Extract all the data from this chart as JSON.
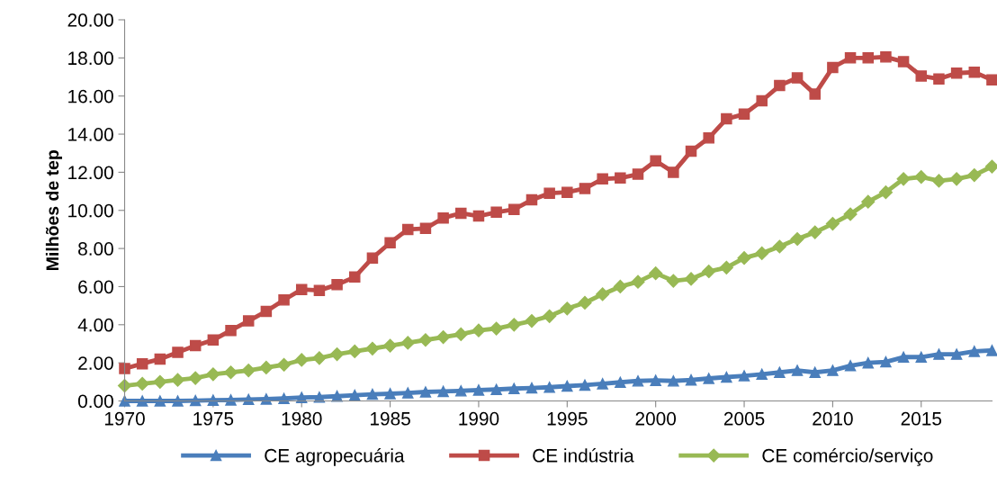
{
  "chart_data": {
    "type": "line",
    "ylabel": "Milhões de tep",
    "x": [
      1970,
      1971,
      1972,
      1973,
      1974,
      1975,
      1976,
      1977,
      1978,
      1979,
      1980,
      1981,
      1982,
      1983,
      1984,
      1985,
      1986,
      1987,
      1988,
      1989,
      1990,
      1991,
      1992,
      1993,
      1994,
      1995,
      1996,
      1997,
      1998,
      1999,
      2000,
      2001,
      2002,
      2003,
      2004,
      2005,
      2006,
      2007,
      2008,
      2009,
      2010,
      2011,
      2012,
      2013,
      2014,
      2015,
      2016,
      2017,
      2018,
      2019
    ],
    "xlim": [
      1970,
      2019
    ],
    "xticks": [
      1970,
      1975,
      1980,
      1985,
      1990,
      1995,
      2000,
      2005,
      2010,
      2015
    ],
    "ylim": [
      0,
      20
    ],
    "yticks": [
      {
        "value": 0,
        "label": "0.00"
      },
      {
        "value": 2,
        "label": "2.00"
      },
      {
        "value": 4,
        "label": "4.00"
      },
      {
        "value": 6,
        "label": "6.00"
      },
      {
        "value": 8,
        "label": "8.00"
      },
      {
        "value": 10,
        "label": "10.00"
      },
      {
        "value": 12,
        "label": "12.00"
      },
      {
        "value": 14,
        "label": "14.00"
      },
      {
        "value": 16,
        "label": "16.00"
      },
      {
        "value": 18,
        "label": "18.00"
      },
      {
        "value": 20,
        "label": "20.00"
      }
    ],
    "grid": false,
    "legend": "bottom",
    "line_style": "solid",
    "series": [
      {
        "name": "CE agropecuária",
        "color": "#4a7ebb",
        "marker": "triangle",
        "values": [
          0,
          0,
          0,
          0,
          0.02,
          0.04,
          0.05,
          0.08,
          0.1,
          0.13,
          0.18,
          0.2,
          0.25,
          0.3,
          0.35,
          0.38,
          0.42,
          0.47,
          0.5,
          0.53,
          0.57,
          0.6,
          0.65,
          0.68,
          0.72,
          0.78,
          0.83,
          0.9,
          0.98,
          1.05,
          1.08,
          1.05,
          1.1,
          1.18,
          1.25,
          1.32,
          1.4,
          1.5,
          1.6,
          1.5,
          1.6,
          1.85,
          2.0,
          2.05,
          2.3,
          2.3,
          2.45,
          2.45,
          2.6,
          2.65
        ]
      },
      {
        "name": "CE indústria",
        "color": "#be4b48",
        "marker": "square",
        "values": [
          1.7,
          1.95,
          2.2,
          2.55,
          2.9,
          3.2,
          3.7,
          4.2,
          4.7,
          5.3,
          5.85,
          5.8,
          6.1,
          6.5,
          7.5,
          8.3,
          9.0,
          9.05,
          9.6,
          9.85,
          9.7,
          9.9,
          10.05,
          10.55,
          10.9,
          10.95,
          11.15,
          11.65,
          11.7,
          11.9,
          12.6,
          12.0,
          13.1,
          13.8,
          14.8,
          15.05,
          15.75,
          16.55,
          16.95,
          16.1,
          17.5,
          18.0,
          18.0,
          18.05,
          17.8,
          17.05,
          16.9,
          17.2,
          17.25,
          16.85
        ]
      },
      {
        "name": "CE comércio/serviço",
        "color": "#98b954",
        "marker": "diamond",
        "values": [
          0.8,
          0.9,
          1.0,
          1.1,
          1.2,
          1.4,
          1.5,
          1.6,
          1.75,
          1.9,
          2.15,
          2.25,
          2.45,
          2.6,
          2.75,
          2.9,
          3.05,
          3.2,
          3.35,
          3.5,
          3.7,
          3.8,
          4.0,
          4.2,
          4.45,
          4.85,
          5.15,
          5.6,
          6.0,
          6.25,
          6.7,
          6.3,
          6.4,
          6.8,
          7.0,
          7.5,
          7.75,
          8.1,
          8.5,
          8.85,
          9.3,
          9.8,
          10.45,
          10.95,
          11.65,
          11.75,
          11.55,
          11.65,
          11.85,
          12.3
        ]
      }
    ]
  }
}
